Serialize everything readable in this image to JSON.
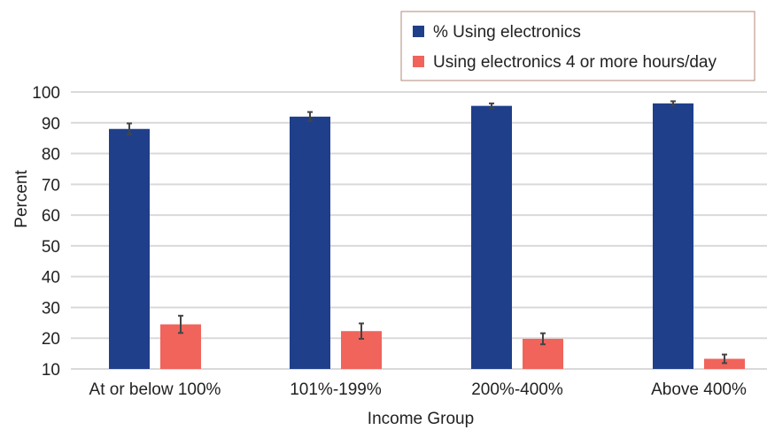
{
  "chart_data": {
    "type": "bar",
    "categories": [
      "At or below 100%",
      "101%-199%",
      "200%-400%",
      "Above 400%"
    ],
    "series": [
      {
        "name": "% Using electronics",
        "color": "#1f3f8a",
        "values": [
          88,
          92,
          95.5,
          96.3
        ],
        "error": [
          1.8,
          1.5,
          0.8,
          0.7
        ]
      },
      {
        "name": "Using electronics 4 or more hours/day",
        "color": "#f0645c",
        "values": [
          24.5,
          22.3,
          19.8,
          13.3
        ],
        "error": [
          2.8,
          2.5,
          1.8,
          1.4
        ]
      }
    ],
    "xlabel": "Income Group",
    "ylabel": "Percent",
    "ylim": [
      10,
      100
    ],
    "yticks": [
      10,
      20,
      30,
      40,
      50,
      60,
      70,
      80,
      90,
      100
    ],
    "grid": true,
    "legend_position": "top-right",
    "colors": {
      "grid": "#d9d9d9",
      "text": "#222222",
      "legend_border": "#b08a78",
      "error_bar": "#444444"
    }
  }
}
